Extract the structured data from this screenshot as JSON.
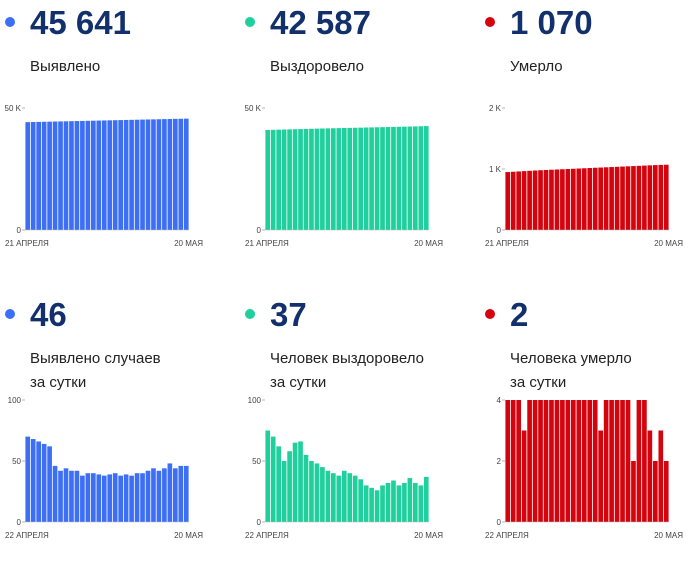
{
  "panels": [
    {
      "value": "45 641",
      "label": "Выявлено",
      "label2": "",
      "color": "#3d6ff5",
      "chart_data": {
        "type": "bar",
        "ylim": [
          0,
          50000
        ],
        "yticks": [
          {
            "v": 0,
            "label": "0"
          },
          {
            "v": 50000,
            "label": "50 K"
          }
        ],
        "xlabels": [
          "21 АПРЕЛЯ",
          "20 МАЯ"
        ],
        "values": [
          44200,
          44250,
          44300,
          44350,
          44400,
          44450,
          44500,
          44550,
          44600,
          44650,
          44700,
          44750,
          44800,
          44850,
          44900,
          44950,
          45000,
          45050,
          45100,
          45150,
          45200,
          45250,
          45300,
          45350,
          45400,
          45450,
          45500,
          45550,
          45600,
          45641
        ]
      }
    },
    {
      "value": "42 587",
      "label": "Выздоровело",
      "label2": "",
      "color": "#1fcf9c",
      "chart_data": {
        "type": "bar",
        "ylim": [
          0,
          50000
        ],
        "yticks": [
          {
            "v": 0,
            "label": "0"
          },
          {
            "v": 50000,
            "label": "50 K"
          }
        ],
        "xlabels": [
          "21 АПРЕЛЯ",
          "20 МАЯ"
        ],
        "values": [
          41000,
          41060,
          41120,
          41180,
          41240,
          41300,
          41360,
          41420,
          41480,
          41540,
          41600,
          41650,
          41700,
          41750,
          41800,
          41850,
          41900,
          41950,
          42000,
          42050,
          42100,
          42150,
          42200,
          42250,
          42300,
          42350,
          42400,
          42450,
          42520,
          42587
        ]
      }
    },
    {
      "value": "1 070",
      "label": "Умерло",
      "label2": "",
      "color": "#d4040f",
      "chart_data": {
        "type": "bar",
        "ylim": [
          0,
          2000
        ],
        "yticks": [
          {
            "v": 0,
            "label": "0"
          },
          {
            "v": 1000,
            "label": "1 K"
          },
          {
            "v": 2000,
            "label": "2 K"
          }
        ],
        "xlabels": [
          "21 АПРЕЛЯ",
          "20 МАЯ"
        ],
        "values": [
          950,
          955,
          960,
          965,
          970,
          975,
          980,
          984,
          988,
          992,
          996,
          1000,
          1004,
          1008,
          1012,
          1016,
          1020,
          1024,
          1028,
          1032,
          1036,
          1040,
          1044,
          1048,
          1052,
          1056,
          1060,
          1064,
          1067,
          1070
        ]
      }
    },
    {
      "value": "46",
      "label": "Выявлено случаев",
      "label2": "за сутки",
      "color": "#3d6ff5",
      "chart_data": {
        "type": "bar",
        "ylim": [
          0,
          100
        ],
        "yticks": [
          {
            "v": 0,
            "label": "0"
          },
          {
            "v": 50,
            "label": "50"
          },
          {
            "v": 100,
            "label": "100"
          }
        ],
        "xlabels": [
          "22 АПРЕЛЯ",
          "20 МАЯ"
        ],
        "values": [
          70,
          68,
          66,
          64,
          62,
          46,
          42,
          44,
          42,
          42,
          38,
          40,
          40,
          39,
          38,
          39,
          40,
          38,
          39,
          38,
          40,
          40,
          42,
          44,
          42,
          44,
          48,
          44,
          46,
          46
        ]
      }
    },
    {
      "value": "37",
      "label": "Человек выздоровело",
      "label2": "за сутки",
      "color": "#1fcf9c",
      "chart_data": {
        "type": "bar",
        "ylim": [
          0,
          100
        ],
        "yticks": [
          {
            "v": 0,
            "label": "0"
          },
          {
            "v": 50,
            "label": "50"
          },
          {
            "v": 100,
            "label": "100"
          }
        ],
        "xlabels": [
          "22 АПРЕЛЯ",
          "20 МАЯ"
        ],
        "values": [
          75,
          70,
          62,
          50,
          58,
          65,
          66,
          55,
          50,
          48,
          45,
          42,
          40,
          38,
          42,
          40,
          38,
          35,
          30,
          28,
          26,
          30,
          32,
          34,
          30,
          32,
          36,
          32,
          30,
          37
        ]
      }
    },
    {
      "value": "2",
      "label": "Человека умерло",
      "label2": "за сутки",
      "color": "#d4040f",
      "chart_data": {
        "type": "bar",
        "ylim": [
          0,
          4
        ],
        "yticks": [
          {
            "v": 0,
            "label": "0"
          },
          {
            "v": 2,
            "label": "2"
          },
          {
            "v": 4,
            "label": "4"
          }
        ],
        "xlabels": [
          "22 АПРЕЛЯ",
          "20 МАЯ"
        ],
        "values": [
          4,
          4,
          4,
          3,
          4,
          4,
          4,
          4,
          4,
          4,
          4,
          4,
          4,
          4,
          4,
          4,
          4,
          3,
          4,
          4,
          4,
          4,
          4,
          2,
          4,
          4,
          3,
          2,
          3,
          2
        ]
      }
    }
  ]
}
